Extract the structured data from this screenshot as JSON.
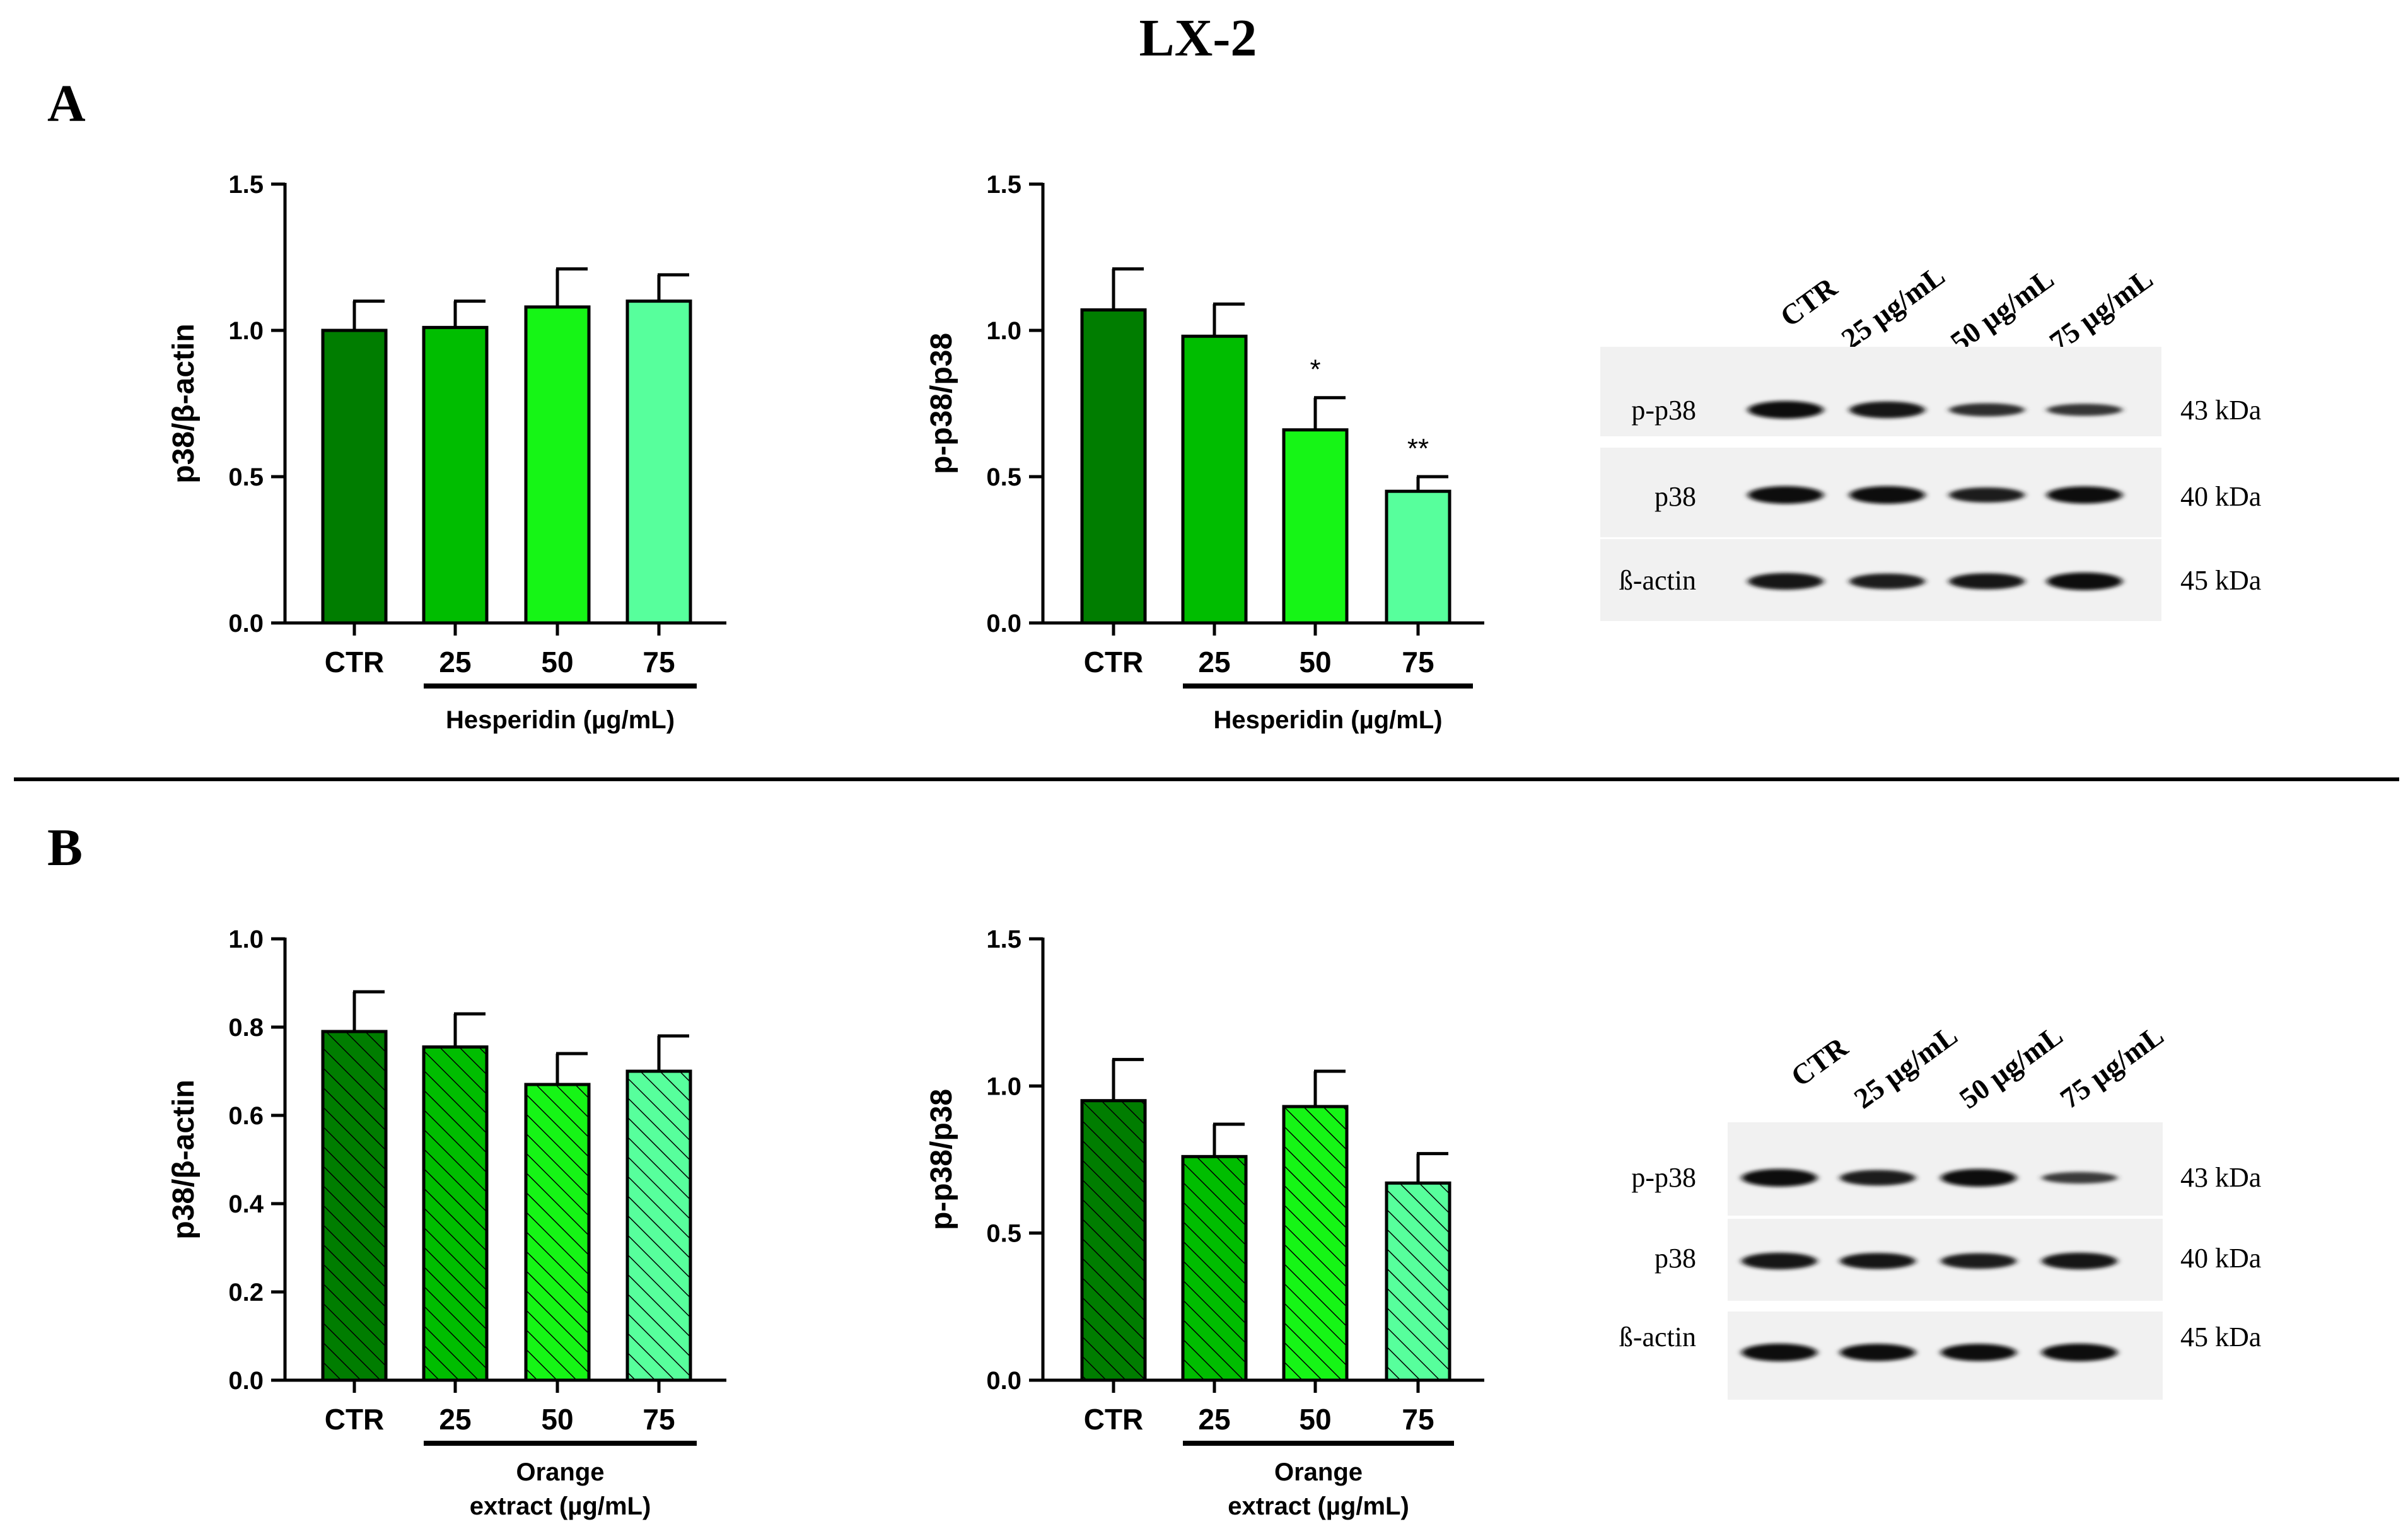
{
  "figure": {
    "title": "LX-2",
    "colors": {
      "ctr": "#007d00",
      "c25": "#00bd00",
      "c50": "#16f516",
      "c75": "#57ff9c"
    }
  },
  "panels": [
    {
      "label": "A",
      "blot": {
        "lanes": [
          "CTR",
          "25 µg/mL",
          "50 µg/mL",
          "75 µg/mL"
        ],
        "rows": [
          {
            "protein": "p-p38",
            "kda": "43 kDa",
            "intensity": [
              1.0,
              0.9,
              0.55,
              0.45
            ]
          },
          {
            "protein": "p38",
            "kda": "40 kDa",
            "intensity": [
              1.0,
              1.0,
              0.75,
              0.95
            ]
          },
          {
            "protein": "ß-actin",
            "kda": "45 kDa",
            "intensity": [
              0.9,
              0.8,
              0.85,
              1.0
            ]
          }
        ]
      }
    },
    {
      "label": "B",
      "blot": {
        "lanes": [
          "CTR",
          "25 µg/mL",
          "50 µg/mL",
          "75 µg/mL"
        ],
        "rows": [
          {
            "protein": "p-p38",
            "kda": "43 kDa",
            "intensity": [
              1.0,
              0.8,
              1.0,
              0.4
            ]
          },
          {
            "protein": "p38",
            "kda": "40 kDa",
            "intensity": [
              0.9,
              0.85,
              0.8,
              0.9
            ]
          },
          {
            "protein": "ß-actin",
            "kda": "45 kDa",
            "intensity": [
              1.0,
              0.95,
              0.95,
              1.0
            ]
          }
        ]
      }
    }
  ],
  "chart_data": [
    {
      "id": "A1",
      "type": "bar",
      "hatched": false,
      "categories": [
        "CTR",
        "25",
        "50",
        "75"
      ],
      "values": [
        1.0,
        1.01,
        1.08,
        1.1
      ],
      "errors": [
        0.1,
        0.09,
        0.13,
        0.09
      ],
      "significance": [
        "",
        "",
        "",
        ""
      ],
      "ylabel": "p38/β-actin",
      "ylim": [
        0,
        1.5
      ],
      "yticks": [
        "0.0",
        "0.5",
        "1.0",
        "1.5"
      ],
      "ytick_values": [
        0,
        0.5,
        1.0,
        1.5
      ],
      "group_label": [
        "Hesperidin (µg/mL)"
      ]
    },
    {
      "id": "A2",
      "type": "bar",
      "hatched": false,
      "categories": [
        "CTR",
        "25",
        "50",
        "75"
      ],
      "values": [
        1.07,
        0.98,
        0.66,
        0.45
      ],
      "errors": [
        0.14,
        0.11,
        0.11,
        0.05
      ],
      "significance": [
        "",
        "",
        "*",
        "**"
      ],
      "ylabel": "p-p38/p38",
      "ylim": [
        0,
        1.5
      ],
      "yticks": [
        "0.0",
        "0.5",
        "1.0",
        "1.5"
      ],
      "ytick_values": [
        0,
        0.5,
        1.0,
        1.5
      ],
      "group_label": [
        "Hesperidin (µg/mL)"
      ]
    },
    {
      "id": "B1",
      "type": "bar",
      "hatched": true,
      "categories": [
        "CTR",
        "25",
        "50",
        "75"
      ],
      "values": [
        0.79,
        0.755,
        0.67,
        0.7
      ],
      "errors": [
        0.09,
        0.075,
        0.07,
        0.08
      ],
      "significance": [
        "",
        "",
        "",
        ""
      ],
      "ylabel": "p38/β-actin",
      "ylim": [
        0,
        1.0
      ],
      "yticks": [
        "0.0",
        "0.2",
        "0.4",
        "0.6",
        "0.8",
        "1.0"
      ],
      "ytick_values": [
        0,
        0.2,
        0.4,
        0.6,
        0.8,
        1.0
      ],
      "group_label": [
        "Orange",
        "extract (µg/mL)"
      ]
    },
    {
      "id": "B2",
      "type": "bar",
      "hatched": true,
      "categories": [
        "CTR",
        "25",
        "50",
        "75"
      ],
      "values": [
        0.95,
        0.76,
        0.93,
        0.67
      ],
      "errors": [
        0.14,
        0.11,
        0.12,
        0.1
      ],
      "significance": [
        "",
        "",
        "",
        ""
      ],
      "ylabel": "p-p38/p38",
      "ylim": [
        0,
        1.5
      ],
      "yticks": [
        "0.0",
        "0.5",
        "1.0",
        "1.5"
      ],
      "ytick_values": [
        0,
        0.5,
        1.0,
        1.5
      ],
      "group_label": [
        "Orange",
        "extract (µg/mL)"
      ]
    }
  ]
}
